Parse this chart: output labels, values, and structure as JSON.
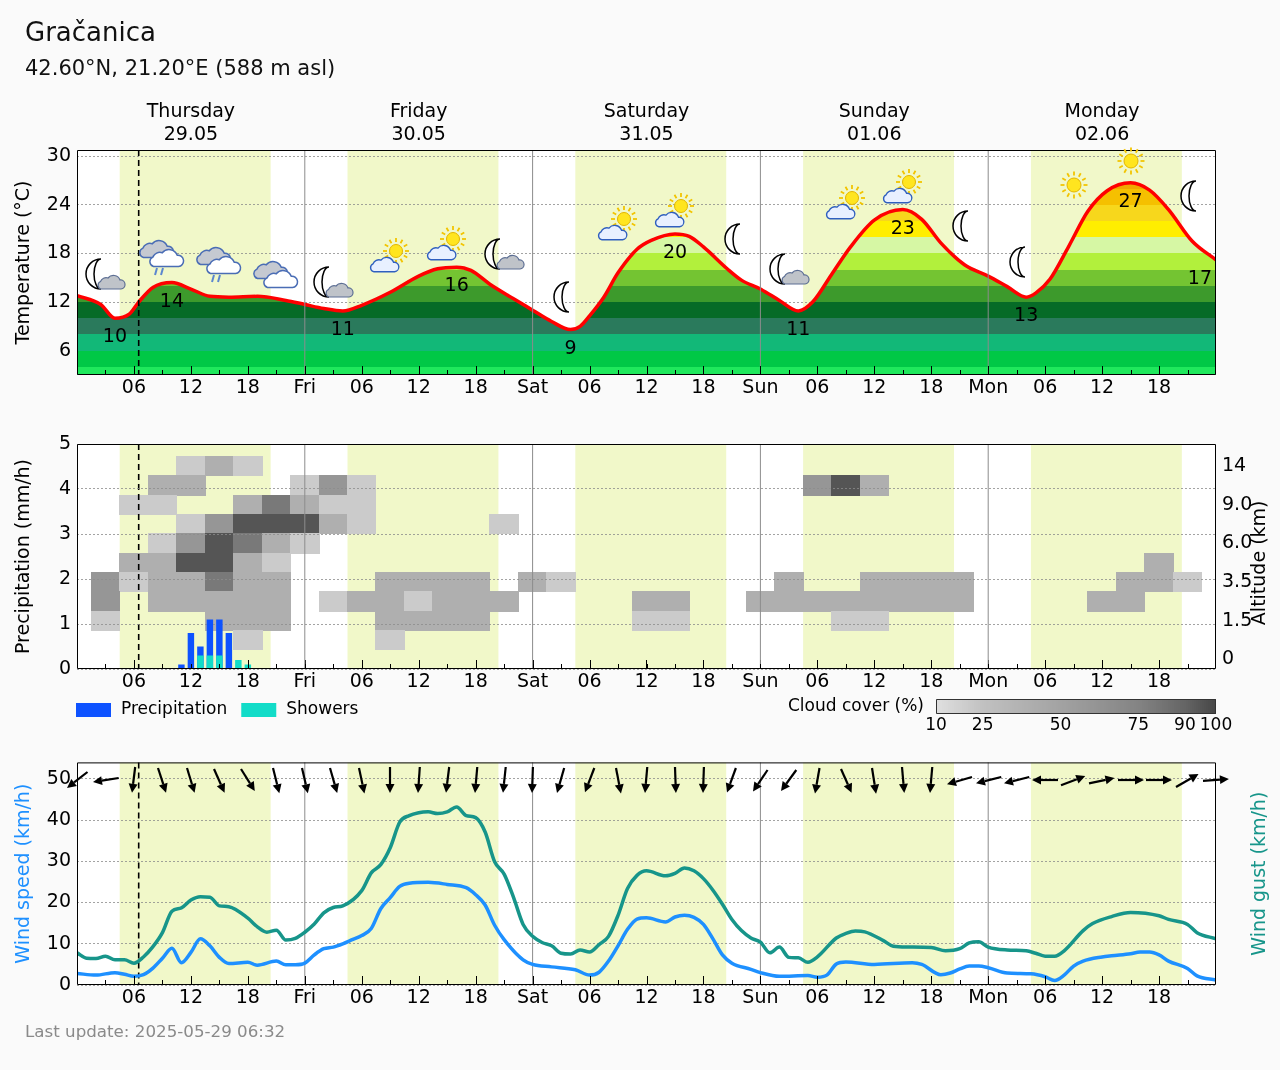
{
  "chart_data": [
    {
      "type": "area",
      "title": "Gračanica",
      "subtitle": "42.60°N, 21.20°E (588 m asl)",
      "ylabel": "Temperature (°C)",
      "x": [
        "2025-05-29T00:00",
        "2025-05-29T02:30",
        "2025-05-29T04:00",
        "2025-05-29T05:30",
        "2025-05-29T06:30",
        "2025-05-29T08:00",
        "2025-05-29T10:00",
        "2025-05-29T12:00",
        "2025-05-29T14:00",
        "2025-05-29T16:00",
        "2025-05-29T19:00",
        "2025-05-29T22:00",
        "2025-05-30T00:00",
        "2025-05-30T02:00",
        "2025-05-30T04:00",
        "2025-05-30T06:00",
        "2025-05-30T09:00",
        "2025-05-30T12:00",
        "2025-05-30T14:00",
        "2025-05-30T16:00",
        "2025-05-30T17:30",
        "2025-05-30T19:30",
        "2025-05-30T22:00",
        "2025-05-31T00:00",
        "2025-05-31T02:00",
        "2025-05-31T04:00",
        "2025-05-31T05:00",
        "2025-05-31T06:00",
        "2025-05-31T07:30",
        "2025-05-31T09:00",
        "2025-05-31T11:00",
        "2025-05-31T12:30",
        "2025-05-31T15:00",
        "2025-05-31T16:30",
        "2025-05-31T18:00",
        "2025-05-31T20:30",
        "2025-05-31T22:00",
        "2025-06-01T00:00",
        "2025-06-01T02:00",
        "2025-06-01T04:00",
        "2025-06-01T05:30",
        "2025-06-01T07:30",
        "2025-06-01T09:30",
        "2025-06-01T12:00",
        "2025-06-01T15:00",
        "2025-06-01T17:00",
        "2025-06-01T19:00",
        "2025-06-01T21:30",
        "2025-06-02T00:00",
        "2025-06-02T02:00",
        "2025-06-02T04:00",
        "2025-06-02T05:00",
        "2025-06-02T06:30",
        "2025-06-02T08:30",
        "2025-06-02T10:30",
        "2025-06-02T12:30",
        "2025-06-02T15:00",
        "2025-06-02T17:00",
        "2025-06-02T19:00",
        "2025-06-02T21:30",
        "2025-06-03T00:00"
      ],
      "series": [
        {
          "color": "#ff0000",
          "values": [
            12.8,
            11.7,
            10,
            10.5,
            12,
            13.8,
            14.4,
            13.6,
            12.7,
            12.6,
            12.7,
            12.2,
            11.7,
            11.2,
            10.9,
            11.6,
            13.2,
            15.2,
            16.1,
            16.3,
            15.9,
            14.2,
            12.4,
            11,
            9.6,
            8.6,
            9,
            10.3,
            12.6,
            15.6,
            18.5,
            19.6,
            20.4,
            20.1,
            18.8,
            16.1,
            14.7,
            13.6,
            12.2,
            10.9,
            12,
            15.4,
            18.8,
            22.1,
            23.4,
            22.2,
            19.3,
            16.6,
            15.2,
            13.9,
            12.6,
            13.1,
            14.8,
            18.9,
            23.2,
            25.7,
            26.7,
            25.8,
            23.4,
            19.5,
            17.2
          ],
          "value_labels": [
            null,
            null,
            "10",
            null,
            null,
            null,
            "14",
            null,
            null,
            null,
            null,
            null,
            null,
            null,
            "11",
            null,
            null,
            null,
            null,
            "16",
            null,
            null,
            null,
            null,
            null,
            "9",
            null,
            null,
            null,
            null,
            null,
            null,
            "20",
            null,
            null,
            null,
            null,
            null,
            null,
            "11",
            null,
            null,
            null,
            null,
            "23",
            null,
            null,
            null,
            null,
            null,
            "13",
            null,
            null,
            null,
            null,
            null,
            "27",
            null,
            null,
            null,
            "17"
          ]
        }
      ],
      "xlim": [
        "2025-05-29T00:00",
        "2025-06-03T00:00"
      ],
      "xticks": [
        {
          "value": "2025-05-29T03:00",
          "label": null
        },
        {
          "value": "2025-05-29T06:00",
          "label": "06"
        },
        {
          "value": "2025-05-29T09:00",
          "label": null
        },
        {
          "value": "2025-05-29T12:00",
          "label": "12"
        },
        {
          "value": "2025-05-29T15:00",
          "label": null
        },
        {
          "value": "2025-05-29T18:00",
          "label": "18"
        },
        {
          "value": "2025-05-29T21:00",
          "label": null
        },
        {
          "value": "2025-05-30T00:00",
          "label": "Fri"
        },
        {
          "value": "2025-05-30T03:00",
          "label": null
        },
        {
          "value": "2025-05-30T06:00",
          "label": "06"
        },
        {
          "value": "2025-05-30T09:00",
          "label": null
        },
        {
          "value": "2025-05-30T12:00",
          "label": "12"
        },
        {
          "value": "2025-05-30T15:00",
          "label": null
        },
        {
          "value": "2025-05-30T18:00",
          "label": "18"
        },
        {
          "value": "2025-05-30T21:00",
          "label": null
        },
        {
          "value": "2025-05-31T00:00",
          "label": "Sat"
        },
        {
          "value": "2025-05-31T03:00",
          "label": null
        },
        {
          "value": "2025-05-31T06:00",
          "label": "06"
        },
        {
          "value": "2025-05-31T09:00",
          "label": null
        },
        {
          "value": "2025-05-31T12:00",
          "label": "12"
        },
        {
          "value": "2025-05-31T15:00",
          "label": null
        },
        {
          "value": "2025-05-31T18:00",
          "label": "18"
        },
        {
          "value": "2025-05-31T21:00",
          "label": null
        },
        {
          "value": "2025-06-01T00:00",
          "label": "Sun"
        },
        {
          "value": "2025-06-01T03:00",
          "label": null
        },
        {
          "value": "2025-06-01T06:00",
          "label": "06"
        },
        {
          "value": "2025-06-01T09:00",
          "label": null
        },
        {
          "value": "2025-06-01T12:00",
          "label": "12"
        },
        {
          "value": "2025-06-01T15:00",
          "label": null
        },
        {
          "value": "2025-06-01T18:00",
          "label": "18"
        },
        {
          "value": "2025-06-01T21:00",
          "label": null
        },
        {
          "value": "2025-06-02T00:00",
          "label": "Mon"
        },
        {
          "value": "2025-06-02T03:00",
          "label": null
        },
        {
          "value": "2025-06-02T06:00",
          "label": "06"
        },
        {
          "value": "2025-06-02T09:00",
          "label": null
        },
        {
          "value": "2025-06-02T12:00",
          "label": "12"
        },
        {
          "value": "2025-06-02T15:00",
          "label": null
        },
        {
          "value": "2025-06-02T18:00",
          "label": "18"
        },
        {
          "value": "2025-06-02T21:00",
          "label": null
        }
      ],
      "x2lim": [
        "2025-05-29T00:00",
        "2025-06-03T00:00"
      ],
      "x2ticks": [
        {
          "value": "2025-05-29T12:00",
          "label": "Thursday\n29.05"
        },
        {
          "value": "2025-05-30T12:00",
          "label": "Friday\n30.05"
        },
        {
          "value": "2025-05-31T12:00",
          "label": "Saturday\n31.05"
        },
        {
          "value": "2025-06-01T12:00",
          "label": "Sunday\n01.06"
        },
        {
          "value": "2025-06-02T12:00",
          "label": "Monday\n02.06"
        }
      ],
      "ylim": [
        3,
        30.75
      ],
      "yticks": [
        6,
        12,
        18,
        24,
        30
      ],
      "grid": "y",
      "bands": [
        {
          "axis": "x",
          "from": "2025-05-29T04:30",
          "to": "2025-05-29T20:24",
          "color": "#f1f8c9"
        },
        {
          "axis": "x",
          "from": "2025-05-30T04:30",
          "to": "2025-05-30T20:24",
          "color": "#f1f8c9"
        },
        {
          "axis": "x",
          "from": "2025-05-31T04:30",
          "to": "2025-05-31T20:24",
          "color": "#f1f8c9"
        },
        {
          "axis": "x",
          "from": "2025-06-01T04:30",
          "to": "2025-06-01T20:24",
          "color": "#f1f8c9"
        },
        {
          "axis": "x",
          "from": "2025-06-02T04:30",
          "to": "2025-06-02T20:24",
          "color": "#f1f8c9"
        }
      ],
      "ref_lines": [
        {
          "axis": "x",
          "value": "2025-05-29T06:30",
          "line_style": "dashed",
          "color": "#000000"
        },
        {
          "axis": "x",
          "value": "2025-05-30T00:00",
          "color": "#8c8c8c"
        },
        {
          "axis": "x",
          "value": "2025-05-31T00:00",
          "color": "#8c8c8c"
        },
        {
          "axis": "x",
          "value": "2025-06-01T00:00",
          "color": "#8c8c8c"
        },
        {
          "axis": "x",
          "value": "2025-06-02T00:00",
          "color": "#8c8c8c"
        }
      ]
    },
    {
      "type": "bar",
      "ylabel": "Precipitation (mm/h)",
      "tick_labels": "y",
      "x": [
        "2025-05-29T11:00",
        "2025-05-29T12:00",
        "2025-05-29T13:00",
        "2025-05-29T14:00",
        "2025-05-29T15:00",
        "2025-05-29T16:00",
        "2025-05-29T17:00",
        "2025-05-29T18:00"
      ],
      "series": [
        {
          "name": "Precipitation",
          "color": "#0d52ff",
          "values": [
            0.1,
            0.8,
            0.5,
            1.1,
            1.1,
            0.8,
            null,
            null
          ]
        },
        {
          "name": "Showers",
          "color": "#12dcc8",
          "values": [
            null,
            null,
            0.3,
            0.3,
            0.3,
            null,
            0.2,
            0.1
          ]
        }
      ],
      "xlim": [
        "2025-05-29T00:00",
        "2025-06-03T00:00"
      ],
      "xticks": [
        {
          "value": "2025-05-29T03:00",
          "label": null
        },
        {
          "value": "2025-05-29T06:00",
          "label": null
        },
        {
          "value": "2025-05-29T09:00",
          "label": null
        },
        {
          "value": "2025-05-29T12:00",
          "label": null
        },
        {
          "value": "2025-05-29T15:00",
          "label": null
        },
        {
          "value": "2025-05-29T18:00",
          "label": null
        },
        {
          "value": "2025-05-29T21:00",
          "label": null
        },
        {
          "value": "2025-05-30T00:00",
          "label": null
        },
        {
          "value": "2025-05-30T03:00",
          "label": null
        },
        {
          "value": "2025-05-30T06:00",
          "label": null
        },
        {
          "value": "2025-05-30T09:00",
          "label": null
        },
        {
          "value": "2025-05-30T12:00",
          "label": null
        },
        {
          "value": "2025-05-30T15:00",
          "label": null
        },
        {
          "value": "2025-05-30T18:00",
          "label": null
        },
        {
          "value": "2025-05-30T21:00",
          "label": null
        },
        {
          "value": "2025-05-31T00:00",
          "label": null
        },
        {
          "value": "2025-05-31T03:00",
          "label": null
        },
        {
          "value": "2025-05-31T06:00",
          "label": null
        },
        {
          "value": "2025-05-31T09:00",
          "label": null
        },
        {
          "value": "2025-05-31T12:00",
          "label": null
        },
        {
          "value": "2025-05-31T15:00",
          "label": null
        },
        {
          "value": "2025-05-31T18:00",
          "label": null
        },
        {
          "value": "2025-05-31T21:00",
          "label": null
        },
        {
          "value": "2025-06-01T00:00",
          "label": null
        },
        {
          "value": "2025-06-01T03:00",
          "label": null
        },
        {
          "value": "2025-06-01T06:00",
          "label": null
        },
        {
          "value": "2025-06-01T09:00",
          "label": null
        },
        {
          "value": "2025-06-01T12:00",
          "label": null
        },
        {
          "value": "2025-06-01T15:00",
          "label": null
        },
        {
          "value": "2025-06-01T18:00",
          "label": null
        },
        {
          "value": "2025-06-01T21:00",
          "label": null
        },
        {
          "value": "2025-06-02T00:00",
          "label": null
        },
        {
          "value": "2025-06-02T03:00",
          "label": null
        },
        {
          "value": "2025-06-02T06:00",
          "label": null
        },
        {
          "value": "2025-06-02T09:00",
          "label": null
        },
        {
          "value": "2025-06-02T12:00",
          "label": null
        },
        {
          "value": "2025-06-02T15:00",
          "label": null
        },
        {
          "value": "2025-06-02T18:00",
          "label": null
        },
        {
          "value": "2025-06-02T21:00",
          "label": null
        }
      ],
      "ylim": [
        0,
        5
      ],
      "yticks": [
        0,
        1,
        2,
        3,
        4,
        5
      ],
      "grid": "y",
      "legend": "bottom left",
      "bands": [
        {
          "axis": "x",
          "from": "2025-05-29T04:30",
          "to": "2025-05-29T20:24",
          "color": "#f1f8c9"
        },
        {
          "axis": "x",
          "from": "2025-05-30T04:30",
          "to": "2025-05-30T20:24",
          "color": "#f1f8c9"
        },
        {
          "axis": "x",
          "from": "2025-05-31T04:30",
          "to": "2025-05-31T20:24",
          "color": "#f1f8c9"
        },
        {
          "axis": "x",
          "from": "2025-06-01T04:30",
          "to": "2025-06-01T20:24",
          "color": "#f1f8c9"
        },
        {
          "axis": "x",
          "from": "2025-06-02T04:30",
          "to": "2025-06-02T20:24",
          "color": "#f1f8c9"
        }
      ],
      "ref_lines": [
        {
          "axis": "x",
          "value": "2025-05-29T06:30",
          "line_style": "dashed",
          "color": "#000000"
        },
        {
          "axis": "x",
          "value": "2025-05-30T00:00",
          "color": "#8c8c8c"
        },
        {
          "axis": "x",
          "value": "2025-05-31T00:00",
          "color": "#8c8c8c"
        },
        {
          "axis": "x",
          "value": "2025-06-01T00:00",
          "color": "#8c8c8c"
        },
        {
          "axis": "x",
          "value": "2025-06-02T00:00",
          "color": "#8c8c8c"
        }
      ]
    },
    {
      "type": "heatmap",
      "y2label": "Altitude (km)",
      "categories": [
        null,
        "06",
        null,
        "12",
        null,
        "18",
        null,
        "Fri",
        null,
        "06",
        null,
        "12",
        null,
        "18",
        null,
        "Sat",
        null,
        "06",
        null,
        "12",
        null,
        "18",
        null,
        "Sun",
        null,
        "06",
        null,
        "12",
        null,
        "18",
        null,
        "Mon",
        null,
        "06",
        null,
        "12",
        null,
        "18",
        null
      ],
      "y_categories": [
        "14",
        null,
        "9.0",
        null,
        "6.0",
        null,
        "3.5",
        null,
        "1.5",
        null,
        "0"
      ],
      "cells": [
        [
          null,
          null,
          null,
          20,
          40,
          20,
          null,
          null,
          null,
          null,
          null,
          null,
          null,
          null,
          null,
          null,
          null,
          null,
          null,
          null,
          null,
          null,
          null,
          null,
          null,
          null,
          null,
          null,
          null,
          null,
          null,
          null,
          null,
          null,
          null,
          null,
          null,
          null,
          null
        ],
        [
          null,
          null,
          40,
          40,
          null,
          null,
          null,
          20,
          60,
          20,
          null,
          null,
          null,
          null,
          null,
          null,
          null,
          null,
          null,
          null,
          null,
          null,
          null,
          null,
          null,
          60,
          95,
          40,
          null,
          null,
          null,
          null,
          null,
          null,
          null,
          null,
          null,
          null,
          null
        ],
        [
          null,
          20,
          20,
          null,
          null,
          40,
          80,
          40,
          20,
          20,
          null,
          null,
          null,
          null,
          null,
          null,
          null,
          null,
          null,
          null,
          null,
          null,
          null,
          null,
          null,
          null,
          null,
          null,
          null,
          null,
          null,
          null,
          null,
          null,
          null,
          null,
          null,
          null,
          null
        ],
        [
          null,
          null,
          null,
          20,
          60,
          95,
          95,
          95,
          40,
          20,
          null,
          null,
          null,
          null,
          20,
          null,
          null,
          null,
          null,
          null,
          null,
          null,
          null,
          null,
          null,
          null,
          null,
          null,
          null,
          null,
          null,
          null,
          null,
          null,
          null,
          null,
          null,
          null,
          null
        ],
        [
          null,
          null,
          20,
          60,
          95,
          80,
          40,
          20,
          null,
          null,
          null,
          null,
          null,
          null,
          null,
          null,
          null,
          null,
          null,
          null,
          null,
          null,
          null,
          null,
          null,
          null,
          null,
          null,
          null,
          null,
          null,
          null,
          null,
          null,
          null,
          null,
          null,
          null,
          null
        ],
        [
          null,
          40,
          40,
          95,
          95,
          40,
          20,
          null,
          null,
          null,
          null,
          null,
          null,
          null,
          null,
          null,
          null,
          null,
          null,
          null,
          null,
          null,
          null,
          null,
          null,
          null,
          null,
          null,
          null,
          null,
          null,
          null,
          null,
          null,
          null,
          null,
          null,
          40,
          null
        ],
        [
          60,
          20,
          40,
          40,
          80,
          40,
          40,
          null,
          null,
          null,
          40,
          40,
          40,
          40,
          null,
          40,
          20,
          null,
          null,
          null,
          null,
          null,
          null,
          null,
          40,
          null,
          null,
          40,
          40,
          40,
          40,
          null,
          null,
          null,
          null,
          null,
          40,
          40,
          20
        ],
        [
          60,
          null,
          40,
          40,
          40,
          40,
          40,
          null,
          20,
          40,
          40,
          20,
          40,
          40,
          40,
          null,
          null,
          null,
          null,
          40,
          40,
          null,
          null,
          40,
          40,
          40,
          40,
          40,
          40,
          40,
          40,
          null,
          null,
          null,
          null,
          40,
          40,
          null,
          null
        ],
        [
          20,
          null,
          null,
          null,
          40,
          40,
          40,
          null,
          null,
          null,
          40,
          40,
          40,
          40,
          null,
          null,
          null,
          null,
          null,
          20,
          20,
          null,
          null,
          null,
          null,
          null,
          20,
          20,
          null,
          null,
          null,
          null,
          null,
          null,
          null,
          null,
          null,
          null,
          null
        ],
        [
          null,
          null,
          null,
          null,
          null,
          20,
          null,
          null,
          null,
          null,
          20,
          null,
          null,
          null,
          null,
          null,
          null,
          null,
          null,
          null,
          null,
          null,
          null,
          null,
          null,
          null,
          null,
          null,
          null,
          null,
          null,
          null,
          null,
          null,
          null,
          null,
          null,
          null,
          null
        ],
        [
          null,
          null,
          null,
          null,
          null,
          null,
          null,
          null,
          null,
          null,
          null,
          null,
          null,
          null,
          null,
          null,
          null,
          null,
          null,
          null,
          null,
          null,
          null,
          null,
          null,
          null,
          null,
          null,
          null,
          null,
          null,
          null,
          null,
          null,
          null,
          null,
          null,
          null,
          null
        ]
      ],
      "clabel": "Cloud cover (%)",
      "clim": [
        10,
        100
      ],
      "cticks": [
        10,
        25,
        50,
        75,
        90,
        100
      ]
    },
    {
      "type": "line",
      "ylabel": "Wind speed (km/h)",
      "y2label": "Wind gust (km/h)",
      "series": [
        {
          "color": "#1e90ff",
          "x": [
            "2025-05-29T00:00",
            "2025-05-29T02:00",
            "2025-05-29T04:00",
            "2025-05-29T05:00",
            "2025-05-29T06:00",
            "2025-05-29T07:00",
            "2025-05-29T08:00",
            "2025-05-29T09:00",
            "2025-05-29T10:00",
            "2025-05-29T11:00",
            "2025-05-29T12:00",
            "2025-05-29T13:00",
            "2025-05-29T14:00",
            "2025-05-29T15:00",
            "2025-05-29T16:00",
            "2025-05-29T18:00",
            "2025-05-29T19:00",
            "2025-05-29T21:00",
            "2025-05-29T22:00",
            "2025-05-29T23:00",
            "2025-05-30T00:00",
            "2025-05-30T01:00",
            "2025-05-30T02:00",
            "2025-05-30T03:00",
            "2025-05-30T04:00",
            "2025-05-30T05:00",
            "2025-05-30T06:00",
            "2025-05-30T07:00",
            "2025-05-30T08:00",
            "2025-05-30T09:00",
            "2025-05-30T10:00",
            "2025-05-30T11:00",
            "2025-05-30T13:00",
            "2025-05-30T15:00",
            "2025-05-30T17:00",
            "2025-05-30T18:00",
            "2025-05-30T19:00",
            "2025-05-30T20:00",
            "2025-05-30T21:00",
            "2025-05-30T23:00",
            "2025-05-31T00:00",
            "2025-05-31T02:00",
            "2025-05-31T04:30",
            "2025-05-31T06:00",
            "2025-05-31T07:00",
            "2025-05-31T08:00",
            "2025-05-31T09:00",
            "2025-05-31T10:00",
            "2025-05-31T11:00",
            "2025-05-31T12:00",
            "2025-05-31T14:00",
            "2025-05-31T15:00",
            "2025-05-31T16:00",
            "2025-05-31T17:00",
            "2025-05-31T18:00",
            "2025-05-31T19:00",
            "2025-05-31T20:00",
            "2025-05-31T21:00",
            "2025-05-31T23:00",
            "2025-06-01T00:00",
            "2025-06-01T02:00",
            "2025-06-01T05:00",
            "2025-06-01T06:00",
            "2025-06-01T07:00",
            "2025-06-01T08:00",
            "2025-06-01T09:00",
            "2025-06-01T12:00",
            "2025-06-01T16:00",
            "2025-06-01T17:00",
            "2025-06-01T19:00",
            "2025-06-01T20:00",
            "2025-06-01T21:00",
            "2025-06-01T22:00",
            "2025-06-01T23:00",
            "2025-06-02T00:00",
            "2025-06-02T02:00",
            "2025-06-02T04:30",
            "2025-06-02T06:00",
            "2025-06-02T07:00",
            "2025-06-02T08:00",
            "2025-06-02T09:00",
            "2025-06-02T10:00",
            "2025-06-02T12:00",
            "2025-06-02T13:00",
            "2025-06-02T15:00",
            "2025-06-02T16:00",
            "2025-06-02T17:00",
            "2025-06-02T18:00",
            "2025-06-02T19:00",
            "2025-06-02T21:00",
            "2025-06-02T22:00",
            "2025-06-03T00:00"
          ],
          "values": [
            2.8,
            2.4,
            3,
            2.6,
            2.1,
            2.5,
            4.1,
            6.5,
            8.9,
            5.4,
            7.9,
            11.2,
            9.5,
            6.7,
            5.2,
            5.5,
            4.8,
            5.8,
            4.9,
            4.9,
            5.3,
            7.3,
            8.8,
            9.2,
            10,
            11,
            12,
            13.7,
            18.5,
            21.2,
            23.9,
            24.7,
            24.9,
            24.4,
            23.6,
            21.9,
            19.4,
            14.5,
            11,
            6.1,
            5,
            4.4,
            3.7,
            2.4,
            3.1,
            5.8,
            9.5,
            13.5,
            16,
            16.3,
            15.3,
            16.5,
            16.9,
            16.4,
            14.7,
            11.2,
            7.3,
            5.3,
            3.8,
            3,
            2.1,
            2.3,
            1.9,
            2.4,
            5.1,
            5.6,
            5,
            5.4,
            5,
            2.5,
            2.9,
            3.9,
            4.6,
            4.6,
            4.2,
            2.9,
            2.7,
            2,
            1.1,
            2.4,
            4.6,
            5.8,
            6.8,
            7.1,
            7.6,
            8,
            8,
            7.3,
            5.8,
            4,
            2.2,
            1.2
          ]
        },
        {
          "color": "#17958a",
          "x": [
            "2025-05-29T00:00",
            "2025-05-29T01:00",
            "2025-05-29T02:00",
            "2025-05-29T03:00",
            "2025-05-29T04:00",
            "2025-05-29T05:00",
            "2025-05-29T06:00",
            "2025-05-29T07:00",
            "2025-05-29T08:00",
            "2025-05-29T09:00",
            "2025-05-29T10:00",
            "2025-05-29T11:00",
            "2025-05-29T12:00",
            "2025-05-29T13:00",
            "2025-05-29T14:00",
            "2025-05-29T15:00",
            "2025-05-29T16:00",
            "2025-05-29T18:00",
            "2025-05-29T19:00",
            "2025-05-29T20:00",
            "2025-05-29T21:00",
            "2025-05-29T22:00",
            "2025-05-29T23:00",
            "2025-05-30T00:00",
            "2025-05-30T01:00",
            "2025-05-30T02:00",
            "2025-05-30T03:00",
            "2025-05-30T04:00",
            "2025-05-30T06:00",
            "2025-05-30T07:00",
            "2025-05-30T08:00",
            "2025-05-30T09:00",
            "2025-05-30T10:00",
            "2025-05-30T11:00",
            "2025-05-30T12:00",
            "2025-05-30T13:00",
            "2025-05-30T14:00",
            "2025-05-30T15:00",
            "2025-05-30T16:00",
            "2025-05-30T17:00",
            "2025-05-30T18:00",
            "2025-05-30T19:00",
            "2025-05-30T20:00",
            "2025-05-30T21:00",
            "2025-05-30T22:00",
            "2025-05-30T23:00",
            "2025-05-31T00:00",
            "2025-05-31T01:00",
            "2025-05-31T02:00",
            "2025-05-31T03:00",
            "2025-05-31T04:00",
            "2025-05-31T05:00",
            "2025-05-31T06:00",
            "2025-05-31T07:00",
            "2025-05-31T08:00",
            "2025-05-31T09:00",
            "2025-05-31T10:00",
            "2025-05-31T11:00",
            "2025-05-31T12:00",
            "2025-05-31T14:00",
            "2025-05-31T15:00",
            "2025-05-31T16:00",
            "2025-05-31T17:00",
            "2025-05-31T18:00",
            "2025-05-31T19:00",
            "2025-05-31T20:00",
            "2025-05-31T21:00",
            "2025-05-31T22:00",
            "2025-05-31T23:00",
            "2025-06-01T00:00",
            "2025-06-01T01:00",
            "2025-06-01T02:00",
            "2025-06-01T03:00",
            "2025-06-01T04:00",
            "2025-06-01T05:00",
            "2025-06-01T06:00",
            "2025-06-01T08:00",
            "2025-06-01T09:00",
            "2025-06-01T10:00",
            "2025-06-01T11:00",
            "2025-06-01T13:00",
            "2025-06-01T14:00",
            "2025-06-01T15:30",
            "2025-06-01T18:00",
            "2025-06-01T19:30",
            "2025-06-01T21:00",
            "2025-06-01T22:00",
            "2025-06-01T23:00",
            "2025-06-02T00:00",
            "2025-06-02T02:00",
            "2025-06-02T04:00",
            "2025-06-02T05:00",
            "2025-06-02T06:00",
            "2025-06-02T07:00",
            "2025-06-02T08:00",
            "2025-06-02T10:00",
            "2025-06-02T11:00",
            "2025-06-02T13:00",
            "2025-06-02T15:00",
            "2025-06-02T18:00",
            "2025-06-02T19:00",
            "2025-06-02T21:00",
            "2025-06-02T22:00",
            "2025-06-03T00:00"
          ],
          "values": [
            7.8,
            6.5,
            6.4,
            7,
            6.1,
            6.1,
            5.3,
            6.8,
            9.3,
            12.7,
            17.9,
            18.7,
            20.6,
            21.4,
            21.3,
            19.2,
            19,
            16.2,
            14.1,
            12.8,
            13.3,
            10.9,
            11.3,
            12.8,
            14.8,
            17.5,
            18.8,
            19.2,
            22.9,
            27.2,
            29.2,
            33.3,
            39.5,
            41.1,
            41.8,
            42,
            41.6,
            42,
            43.2,
            41.1,
            40.6,
            37.1,
            29.9,
            26.9,
            21.2,
            14.7,
            11.8,
            10.3,
            9.5,
            7.7,
            7.5,
            8.5,
            8,
            9.8,
            11.8,
            16.9,
            23.4,
            26.6,
            27.7,
            26.5,
            27.1,
            28.4,
            27.7,
            25.8,
            23,
            19.6,
            15.9,
            13.2,
            11.4,
            10.4,
            7.8,
            9.2,
            6.7,
            6.6,
            5.5,
            6.8,
            11.4,
            12.5,
            13.1,
            12.9,
            10.7,
            9.4,
            9.2,
            9.1,
            8.3,
            8.8,
            10.2,
            10.5,
            9.2,
            8.5,
            8.3,
            7.7,
            7,
            7,
            8.3,
            13.2,
            14.9,
            16.6,
            17.6,
            16.8,
            15.9,
            14.7,
            12.7,
            11.2
          ]
        }
      ],
      "xlim": [
        "2025-05-29T00:00",
        "2025-06-03T00:00"
      ],
      "xticks": [
        {
          "value": "2025-05-29T03:00",
          "label": null
        },
        {
          "value": "2025-05-29T06:00",
          "label": "06"
        },
        {
          "value": "2025-05-29T09:00",
          "label": null
        },
        {
          "value": "2025-05-29T12:00",
          "label": "12"
        },
        {
          "value": "2025-05-29T15:00",
          "label": null
        },
        {
          "value": "2025-05-29T18:00",
          "label": "18"
        },
        {
          "value": "2025-05-29T21:00",
          "label": null
        },
        {
          "value": "2025-05-30T00:00",
          "label": "Fri"
        },
        {
          "value": "2025-05-30T03:00",
          "label": null
        },
        {
          "value": "2025-05-30T06:00",
          "label": "06"
        },
        {
          "value": "2025-05-30T09:00",
          "label": null
        },
        {
          "value": "2025-05-30T12:00",
          "label": "12"
        },
        {
          "value": "2025-05-30T15:00",
          "label": null
        },
        {
          "value": "2025-05-30T18:00",
          "label": "18"
        },
        {
          "value": "2025-05-30T21:00",
          "label": null
        },
        {
          "value": "2025-05-31T00:00",
          "label": "Sat"
        },
        {
          "value": "2025-05-31T03:00",
          "label": null
        },
        {
          "value": "2025-05-31T06:00",
          "label": "06"
        },
        {
          "value": "2025-05-31T09:00",
          "label": null
        },
        {
          "value": "2025-05-31T12:00",
          "label": "12"
        },
        {
          "value": "2025-05-31T15:00",
          "label": null
        },
        {
          "value": "2025-05-31T18:00",
          "label": "18"
        },
        {
          "value": "2025-05-31T21:00",
          "label": null
        },
        {
          "value": "2025-06-01T00:00",
          "label": "Sun"
        },
        {
          "value": "2025-06-01T03:00",
          "label": null
        },
        {
          "value": "2025-06-01T06:00",
          "label": "06"
        },
        {
          "value": "2025-06-01T09:00",
          "label": null
        },
        {
          "value": "2025-06-01T12:00",
          "label": "12"
        },
        {
          "value": "2025-06-01T15:00",
          "label": null
        },
        {
          "value": "2025-06-01T18:00",
          "label": "18"
        },
        {
          "value": "2025-06-01T21:00",
          "label": null
        },
        {
          "value": "2025-06-02T00:00",
          "label": "Mon"
        },
        {
          "value": "2025-06-02T03:00",
          "label": null
        },
        {
          "value": "2025-06-02T06:00",
          "label": "06"
        },
        {
          "value": "2025-06-02T09:00",
          "label": null
        },
        {
          "value": "2025-06-02T12:00",
          "label": "12"
        },
        {
          "value": "2025-06-02T15:00",
          "label": null
        },
        {
          "value": "2025-06-02T18:00",
          "label": "18"
        },
        {
          "value": "2025-06-02T21:00",
          "label": null
        }
      ],
      "ylim": [
        0,
        54
      ],
      "yticks": [
        0,
        10,
        20,
        30,
        40,
        50
      ],
      "grid": "y",
      "bands": [
        {
          "axis": "x",
          "from": "2025-05-29T04:30",
          "to": "2025-05-29T20:24",
          "color": "#f1f8c9"
        },
        {
          "axis": "x",
          "from": "2025-05-30T04:30",
          "to": "2025-05-30T20:24",
          "color": "#f1f8c9"
        },
        {
          "axis": "x",
          "from": "2025-05-31T04:30",
          "to": "2025-05-31T20:24",
          "color": "#f1f8c9"
        },
        {
          "axis": "x",
          "from": "2025-06-01T04:30",
          "to": "2025-06-01T20:24",
          "color": "#f1f8c9"
        },
        {
          "axis": "x",
          "from": "2025-06-02T04:30",
          "to": "2025-06-02T20:24",
          "color": "#f1f8c9"
        }
      ],
      "ref_lines": [
        {
          "axis": "x",
          "value": "2025-05-29T06:30",
          "line_style": "dashed",
          "color": "#000000"
        },
        {
          "axis": "x",
          "value": "2025-05-30T00:00",
          "color": "#8c8c8c"
        },
        {
          "axis": "x",
          "value": "2025-05-31T00:00",
          "color": "#8c8c8c"
        },
        {
          "axis": "x",
          "value": "2025-06-01T00:00",
          "color": "#8c8c8c"
        },
        {
          "axis": "x",
          "value": "2025-06-02T00:00",
          "color": "#8c8c8c"
        }
      ],
      "annotations": [
        "Last update: 2025-05-29 06:32"
      ]
    }
  ]
}
